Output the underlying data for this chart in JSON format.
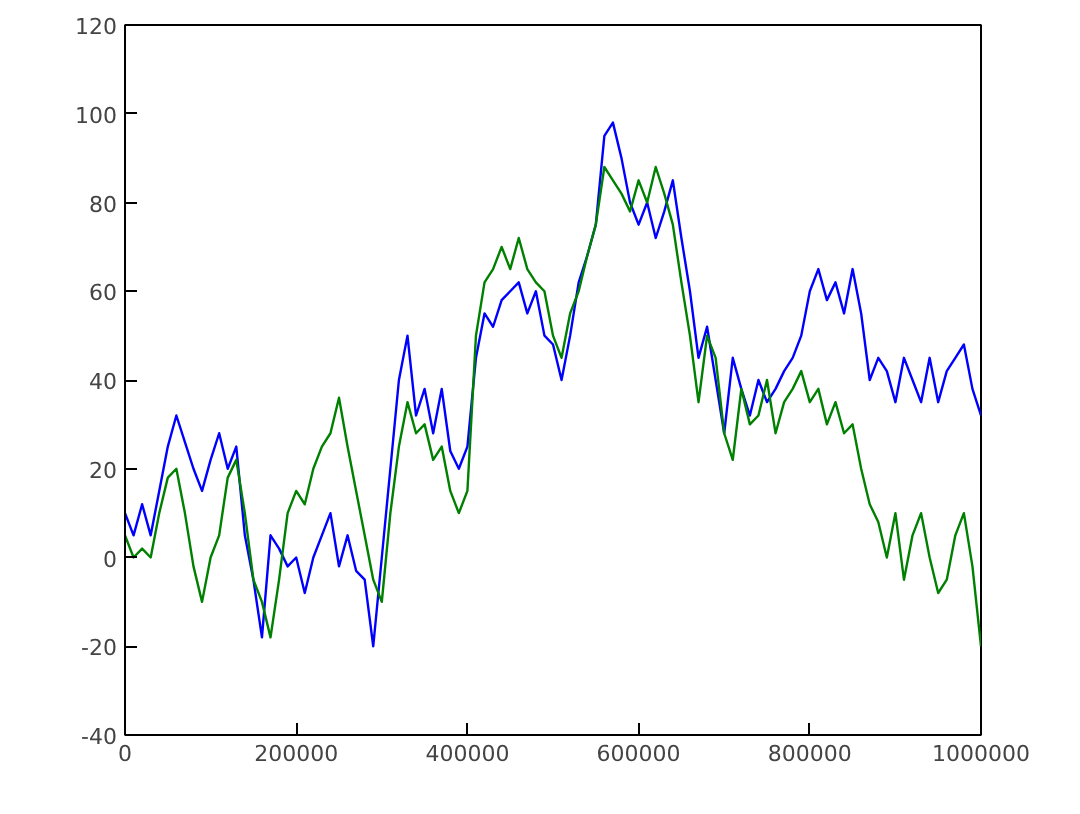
{
  "chart_data": {
    "type": "line",
    "xlim": [
      0,
      1000000
    ],
    "ylim": [
      -40,
      120
    ],
    "xticks": [
      0,
      200000,
      400000,
      600000,
      800000,
      1000000
    ],
    "yticks": [
      -40,
      -20,
      0,
      20,
      40,
      60,
      80,
      100,
      120
    ],
    "grid": false,
    "marker": "none",
    "line_style": "solid",
    "x": [
      0,
      10000,
      20000,
      30000,
      40000,
      50000,
      60000,
      70000,
      80000,
      90000,
      100000,
      110000,
      120000,
      130000,
      140000,
      150000,
      160000,
      170000,
      180000,
      190000,
      200000,
      210000,
      220000,
      230000,
      240000,
      250000,
      260000,
      270000,
      280000,
      290000,
      300000,
      310000,
      320000,
      330000,
      340000,
      350000,
      360000,
      370000,
      380000,
      390000,
      400000,
      410000,
      420000,
      430000,
      440000,
      450000,
      460000,
      470000,
      480000,
      490000,
      500000,
      510000,
      520000,
      530000,
      540000,
      550000,
      560000,
      570000,
      580000,
      590000,
      600000,
      610000,
      620000,
      630000,
      640000,
      650000,
      660000,
      670000,
      680000,
      690000,
      700000,
      710000,
      720000,
      730000,
      740000,
      750000,
      760000,
      770000,
      780000,
      790000,
      800000,
      810000,
      820000,
      830000,
      840000,
      850000,
      860000,
      870000,
      880000,
      890000,
      900000,
      910000,
      920000,
      930000,
      940000,
      950000,
      960000,
      970000,
      980000,
      990000,
      1000000
    ],
    "series": [
      {
        "color": "#0000ff",
        "values": [
          10,
          5,
          12,
          5,
          15,
          25,
          32,
          26,
          20,
          15,
          22,
          28,
          20,
          25,
          5,
          -5,
          -18,
          5,
          2,
          -2,
          0,
          -8,
          0,
          5,
          10,
          -2,
          5,
          -3,
          -5,
          -20,
          0,
          20,
          40,
          50,
          32,
          38,
          28,
          38,
          24,
          20,
          25,
          45,
          55,
          52,
          58,
          60,
          62,
          55,
          60,
          50,
          48,
          40,
          50,
          62,
          68,
          75,
          95,
          98,
          90,
          80,
          75,
          80,
          72,
          78,
          85,
          72,
          60,
          45,
          52,
          40,
          28,
          45,
          38,
          32,
          40,
          35,
          38,
          42,
          45,
          50,
          60,
          65,
          58,
          62,
          55,
          65,
          55,
          40,
          45,
          42,
          35,
          45,
          40,
          35,
          45,
          35,
          42,
          45,
          48,
          38,
          32
        ]
      },
      {
        "color": "#008000",
        "values": [
          5,
          0,
          2,
          0,
          10,
          18,
          20,
          10,
          -2,
          -10,
          0,
          5,
          18,
          22,
          10,
          -5,
          -10,
          -18,
          -5,
          10,
          15,
          12,
          20,
          25,
          28,
          36,
          25,
          15,
          5,
          -5,
          -10,
          10,
          25,
          35,
          28,
          30,
          22,
          25,
          15,
          10,
          15,
          50,
          62,
          65,
          70,
          65,
          72,
          65,
          62,
          60,
          50,
          45,
          55,
          60,
          68,
          75,
          88,
          85,
          82,
          78,
          85,
          80,
          88,
          82,
          75,
          62,
          50,
          35,
          50,
          45,
          28,
          22,
          38,
          30,
          32,
          40,
          28,
          35,
          38,
          42,
          35,
          38,
          30,
          35,
          28,
          30,
          20,
          12,
          8,
          0,
          10,
          -5,
          5,
          10,
          0,
          -8,
          -5,
          5,
          10,
          -2,
          -20
        ]
      }
    ]
  }
}
